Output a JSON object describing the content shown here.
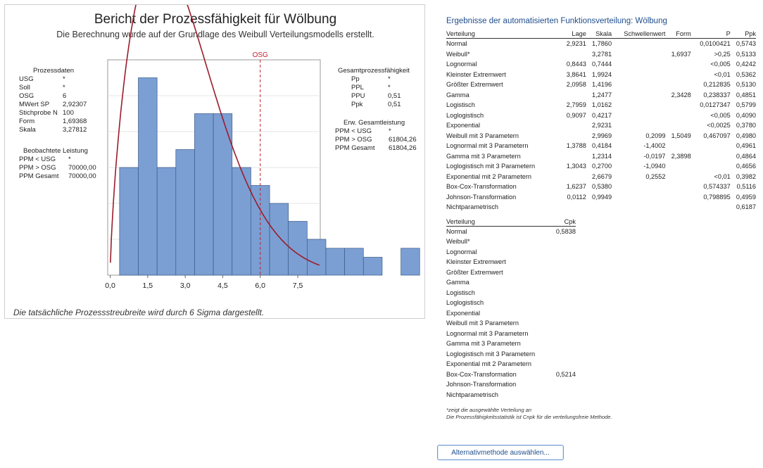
{
  "report": {
    "title": "Bericht der Prozessfähigkeit für Wölbung",
    "subtitle": "Die Berechnung wurde auf der Grundlage des Weibull Verteilungsmodells erstellt.",
    "footnote": "Die tatsächliche Prozessstreubreite wird durch 6 Sigma dargestellt."
  },
  "process_data": {
    "title": "Prozessdaten",
    "rows": [
      {
        "label": "USG",
        "value": "*"
      },
      {
        "label": "Soll",
        "value": "*"
      },
      {
        "label": "OSG",
        "value": "6"
      },
      {
        "label": "MWert SP",
        "value": "2,92307"
      },
      {
        "label": "Stichprobe N",
        "value": "100"
      },
      {
        "label": "Form",
        "value": "1,69368"
      },
      {
        "label": "Skala",
        "value": "3,27812"
      }
    ]
  },
  "observed": {
    "title": "Beobachtete Leistung",
    "rows": [
      {
        "label": "PPM < USG",
        "value": "*"
      },
      {
        "label": "PPM > OSG",
        "value": "70000,00"
      },
      {
        "label": "PPM Gesamt",
        "value": "70000,00"
      }
    ]
  },
  "overall_capability": {
    "title": "Gesamtprozessfähigkeit",
    "rows": [
      {
        "label": "Pp",
        "value": "*"
      },
      {
        "label": "PPL",
        "value": "*"
      },
      {
        "label": "PPU",
        "value": "0,51"
      },
      {
        "label": "Ppk",
        "value": "0,51"
      }
    ]
  },
  "expected_overall": {
    "title": "Erw. Gesamtleistung",
    "rows": [
      {
        "label": "PPM < USG",
        "value": "*"
      },
      {
        "label": "PPM > OSG",
        "value": "61804,26"
      },
      {
        "label": "PPM Gesamt",
        "value": "61804,26"
      }
    ]
  },
  "chart_data": {
    "type": "bar",
    "subtype": "histogram-with-fitted-weibull",
    "bin_width": 0.75,
    "bin_start": 0.375,
    "counts": [
      6,
      11,
      6,
      7,
      9,
      9,
      6,
      5,
      4,
      3,
      2,
      1.5,
      1.5,
      1,
      0,
      1.5
    ],
    "xlim": [
      -0.1,
      8.4
    ],
    "ylim": [
      0,
      12
    ],
    "xticks": [
      0,
      1.5,
      3,
      4.5,
      6,
      7.5
    ],
    "xtick_labels": [
      "0,0",
      "1,5",
      "3,0",
      "4,5",
      "6,0",
      "7,5"
    ],
    "grid": true,
    "bar_color": "#7b9fd3",
    "bar_edge": "#3c5a86",
    "curve": {
      "distribution": "Weibull",
      "shape": 1.69368,
      "scale": 3.27812,
      "n": 100,
      "color": "#9b1c2c"
    },
    "usl": {
      "value": 6,
      "label": "OSG",
      "color": "#c0202c"
    }
  },
  "results": {
    "title": "Ergebnisse der automatisierten Funktionsverteilung: Wölbung",
    "headers": [
      "Verteilung",
      "Lage",
      "Skala",
      "Schwellenwert",
      "Form",
      "P",
      "Ppk"
    ],
    "rows": [
      [
        "Normal",
        "2,9231",
        "1,7860",
        "",
        "",
        "0,0100421",
        "0,5743"
      ],
      [
        "Weibull*",
        "",
        "3,2781",
        "",
        "1,6937",
        ">0,25",
        "0,5133"
      ],
      [
        "Lognormal",
        "0,8443",
        "0,7444",
        "",
        "",
        "<0,005",
        "0,4242"
      ],
      [
        "Kleinster Extremwert",
        "3,8641",
        "1,9924",
        "",
        "",
        "<0,01",
        "0,5362"
      ],
      [
        "Größter Extremwert",
        "2,0958",
        "1,4196",
        "",
        "",
        "0,212835",
        "0,5130"
      ],
      [
        "Gamma",
        "",
        "1,2477",
        "",
        "2,3428",
        "0,238337",
        "0,4851"
      ],
      [
        "Logistisch",
        "2,7959",
        "1,0162",
        "",
        "",
        "0,0127347",
        "0,5799"
      ],
      [
        "Loglogistisch",
        "0,9097",
        "0,4217",
        "",
        "",
        "<0,005",
        "0,4090"
      ],
      [
        "Exponential",
        "",
        "2,9231",
        "",
        "",
        "<0,0025",
        "0,3780"
      ],
      [
        "Weibull mit 3 Parametern",
        "",
        "2,9969",
        "0,2099",
        "1,5049",
        "0,467097",
        "0,4980"
      ],
      [
        "Lognormal mit 3 Parametern",
        "1,3788",
        "0,4184",
        "-1,4002",
        "",
        "",
        "0,4961"
      ],
      [
        "Gamma mit 3 Parametern",
        "",
        "1,2314",
        "-0,0197",
        "2,3898",
        "",
        "0,4864"
      ],
      [
        "Loglogistisch mit 3 Parametern",
        "1,3043",
        "0,2700",
        "-1,0940",
        "",
        "",
        "0,4656"
      ],
      [
        "Exponential mit 2 Parametern",
        "",
        "2,6679",
        "0,2552",
        "",
        "<0,01",
        "0,3982"
      ],
      [
        "Box-Cox-Transformation",
        "1,6237",
        "0,5380",
        "",
        "",
        "0,574337",
        "0,5116"
      ],
      [
        "Johnson-Transformation",
        "0,0112",
        "0,9949",
        "",
        "",
        "0,798895",
        "0,4959"
      ],
      [
        "Nichtparametrisch",
        "",
        "",
        "",
        "",
        "",
        "0,6187"
      ]
    ]
  },
  "cpk_table": {
    "headers": [
      "Verteilung",
      "Cpk"
    ],
    "rows": [
      [
        "Normal",
        "0,5838"
      ],
      [
        "Weibull*",
        ""
      ],
      [
        "Lognormal",
        ""
      ],
      [
        "Kleinster Extremwert",
        ""
      ],
      [
        "Größter Extremwert",
        ""
      ],
      [
        "Gamma",
        ""
      ],
      [
        "Logistisch",
        ""
      ],
      [
        "Loglogistisch",
        ""
      ],
      [
        "Exponential",
        ""
      ],
      [
        "Weibull mit 3 Parametern",
        ""
      ],
      [
        "Lognormal mit 3 Parametern",
        ""
      ],
      [
        "Gamma mit 3 Parametern",
        ""
      ],
      [
        "Loglogistisch mit 3 Parametern",
        ""
      ],
      [
        "Exponential mit 2 Parametern",
        ""
      ],
      [
        "Box-Cox-Transformation",
        "0,5214"
      ],
      [
        "Johnson-Transformation",
        ""
      ],
      [
        "Nichtparametrisch",
        ""
      ]
    ]
  },
  "notes": {
    "line1": "*zeigt die ausgewählte Verteilung an",
    "line2": "Die Prozessfähigkeitsstatistik ist Cnpk für die verteilungsfreie Methode."
  },
  "button": {
    "label": "Alternativmethode auswählen..."
  }
}
